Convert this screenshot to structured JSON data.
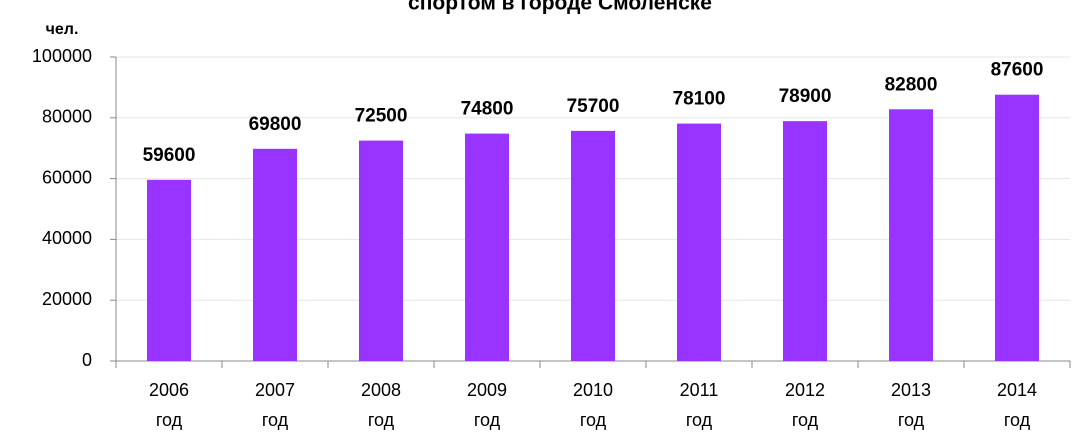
{
  "chart_data": {
    "type": "bar",
    "title": "спортом в городе Смоленске",
    "y_label": "чел.",
    "categories": [
      "2006 год",
      "2007 год",
      "2008 год",
      "2009 год",
      "2010 год",
      "2011 год",
      "2012 год",
      "2013 год",
      "2014 год"
    ],
    "values": [
      59600,
      69800,
      72500,
      74800,
      75700,
      78100,
      78900,
      82800,
      87600
    ],
    "color": "#9933ff",
    "ylim": [
      0,
      100000
    ],
    "yticks": [
      0,
      20000,
      40000,
      60000,
      80000,
      100000
    ],
    "grid": true
  }
}
